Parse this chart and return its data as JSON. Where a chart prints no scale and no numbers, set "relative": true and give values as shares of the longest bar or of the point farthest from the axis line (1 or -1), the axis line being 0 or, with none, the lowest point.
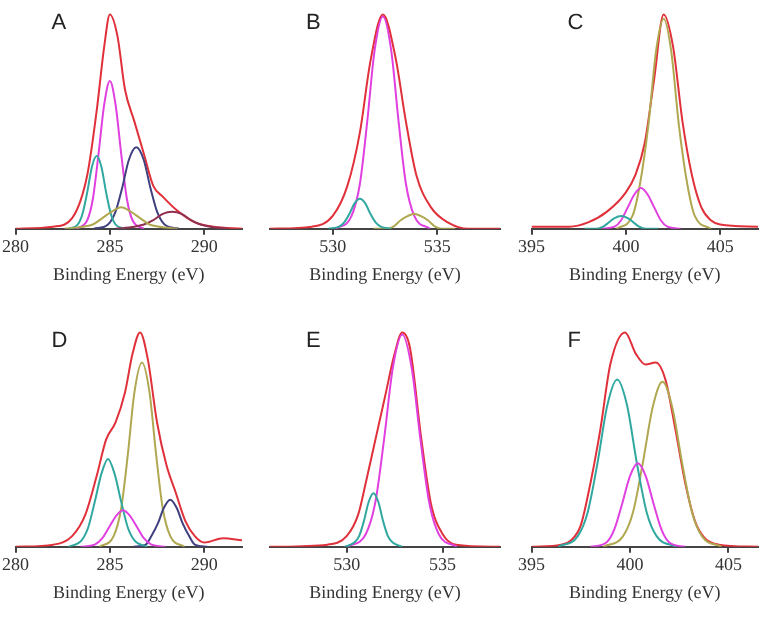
{
  "chart_data": [
    {
      "type": "line",
      "title": "A",
      "xlabel": "Binding Energy (eV)",
      "relative": true,
      "xlim": [
        280,
        292
      ],
      "xticks": [
        280,
        285,
        290
      ],
      "tick_labels": "x",
      "grid": false,
      "legend": false,
      "marker": "none",
      "line_style": "solid",
      "series": [
        {
          "color": "#b0a850",
          "x": [
            282.6,
            283.6,
            284.1,
            284.6,
            285.1,
            285.6,
            286.1,
            286.6,
            287.1,
            287.6,
            288.6
          ],
          "values": [
            0,
            0.01,
            0.02,
            0.05,
            0.08,
            0.1,
            0.08,
            0.05,
            0.02,
            0.01,
            0
          ]
        },
        {
          "color": "#903050",
          "x": [
            285.3,
            286.3,
            286.8,
            287.3,
            287.8,
            288.3,
            288.8,
            289.3,
            289.8,
            290.3,
            291.3
          ],
          "values": [
            0,
            0.01,
            0.02,
            0.04,
            0.07,
            0.08,
            0.07,
            0.04,
            0.02,
            0.01,
            0
          ]
        },
        {
          "color": "#30a8a0",
          "x": [
            282.8,
            283.3,
            283.55,
            283.8,
            284.05,
            284.3,
            284.55,
            284.8,
            285.05,
            285.3,
            285.8
          ],
          "values": [
            0,
            0.02,
            0.07,
            0.17,
            0.29,
            0.34,
            0.29,
            0.17,
            0.07,
            0.02,
            0
          ]
        },
        {
          "color": "#404080",
          "x": [
            284.15,
            284.9,
            285.3,
            285.65,
            286.0,
            286.4,
            286.8,
            287.15,
            287.5,
            287.9,
            288.65
          ],
          "values": [
            0,
            0.02,
            0.08,
            0.19,
            0.32,
            0.38,
            0.32,
            0.19,
            0.08,
            0.02,
            0
          ]
        },
        {
          "color": "#e040e0",
          "x": [
            283.2,
            283.8,
            284.1,
            284.4,
            284.7,
            285,
            285.3,
            285.6,
            285.9,
            286.2,
            286.8
          ],
          "values": [
            0,
            0.04,
            0.14,
            0.35,
            0.58,
            0.69,
            0.58,
            0.35,
            0.14,
            0.04,
            0
          ]
        },
        {
          "color": "#e0303a",
          "x": [
            280,
            282,
            283,
            283.8,
            284.3,
            284.7,
            285,
            285.4,
            285.8,
            286.3,
            286.8,
            287.3,
            287.8,
            288.5,
            289.5,
            290.5,
            292
          ],
          "values": [
            0,
            0.01,
            0.05,
            0.25,
            0.55,
            0.85,
            1,
            0.9,
            0.65,
            0.5,
            0.35,
            0.2,
            0.15,
            0.09,
            0.03,
            0.01,
            0
          ]
        }
      ]
    },
    {
      "type": "line",
      "title": "B",
      "xlabel": "Binding Energy (eV)",
      "relative": true,
      "xlim": [
        527,
        538
      ],
      "xticks": [
        530,
        535
      ],
      "tick_labels": "x",
      "grid": false,
      "legend": false,
      "marker": "none",
      "line_style": "solid",
      "series": [
        {
          "color": "#30a8a0",
          "x": [
            529.8,
            530.3,
            530.55,
            530.8,
            531.05,
            531.3,
            531.55,
            531.8,
            532.05,
            532.3,
            532.8
          ],
          "values": [
            0,
            0.01,
            0.03,
            0.07,
            0.12,
            0.14,
            0.12,
            0.07,
            0.03,
            0.01,
            0
          ]
        },
        {
          "color": "#b0a850",
          "x": [
            531.95,
            532.6,
            532.9,
            533.25,
            533.6,
            533.9,
            534.2,
            534.55,
            534.9,
            535.2,
            535.85
          ],
          "values": [
            0,
            0,
            0.01,
            0.04,
            0.06,
            0.07,
            0.06,
            0.04,
            0.01,
            0,
            0
          ]
        },
        {
          "color": "#e040e0",
          "x": [
            530.15,
            530.9,
            531.3,
            531.65,
            532.0,
            532.4,
            532.8,
            533.15,
            533.5,
            533.9,
            534.65
          ],
          "values": [
            0,
            0.06,
            0.21,
            0.5,
            0.83,
            0.99,
            0.83,
            0.5,
            0.21,
            0.06,
            0
          ]
        },
        {
          "color": "#e0303a",
          "x": [
            527,
            529,
            530,
            530.7,
            531.3,
            531.8,
            532.4,
            533,
            533.5,
            534,
            534.7,
            535.5,
            536.5,
            538
          ],
          "values": [
            0,
            0.01,
            0.06,
            0.2,
            0.45,
            0.78,
            1,
            0.8,
            0.5,
            0.25,
            0.1,
            0.03,
            0,
            0
          ]
        }
      ]
    },
    {
      "type": "line",
      "title": "C",
      "xlabel": "Binding Energy (eV)",
      "relative": true,
      "xlim": [
        395,
        407
      ],
      "xticks": [
        395,
        400,
        405
      ],
      "tick_labels": "x",
      "grid": false,
      "legend": false,
      "marker": "none",
      "line_style": "solid",
      "series": [
        {
          "color": "#30a8a0",
          "x": [
            397.8,
            398.45,
            398.8,
            399.1,
            399.4,
            399.75,
            400.1,
            400.4,
            400.7,
            401.05,
            401.7
          ],
          "values": [
            0,
            0,
            0.01,
            0.03,
            0.05,
            0.06,
            0.05,
            0.03,
            0.01,
            0,
            0
          ]
        },
        {
          "color": "#e040e0",
          "x": [
            398.7,
            399.4,
            399.75,
            400.1,
            400.45,
            400.8,
            401.15,
            401.5,
            401.85,
            402.2,
            402.9
          ],
          "values": [
            0,
            0.01,
            0.04,
            0.1,
            0.16,
            0.19,
            0.16,
            0.1,
            0.04,
            0.01,
            0
          ]
        },
        {
          "color": "#b0a850",
          "x": [
            399.5,
            400.35,
            400.75,
            401.2,
            401.6,
            402,
            402.4,
            402.8,
            403.25,
            403.65,
            404.5
          ],
          "values": [
            0,
            0.06,
            0.21,
            0.49,
            0.83,
            0.98,
            0.83,
            0.49,
            0.21,
            0.06,
            0
          ]
        },
        {
          "color": "#e0303a",
          "x": [
            395,
            397,
            398,
            399,
            400,
            400.5,
            401,
            401.5,
            402,
            402.5,
            403,
            403.5,
            404,
            404.5,
            405,
            407
          ],
          "values": [
            0.01,
            0.01,
            0.03,
            0.08,
            0.17,
            0.25,
            0.4,
            0.7,
            1,
            0.85,
            0.5,
            0.25,
            0.1,
            0.04,
            0.02,
            0.01
          ]
        }
      ]
    },
    {
      "type": "line",
      "title": "D",
      "xlabel": "Binding Energy (eV)",
      "relative": true,
      "xlim": [
        280,
        292
      ],
      "xticks": [
        280,
        285,
        290
      ],
      "tick_labels": "x",
      "grid": false,
      "legend": false,
      "marker": "none",
      "line_style": "solid",
      "series": [
        {
          "color": "#e040e0",
          "x": [
            283.45,
            284.2,
            284.6,
            284.95,
            285.3,
            285.7,
            286.1,
            286.45,
            286.8,
            287.2,
            287.95
          ],
          "values": [
            0,
            0.01,
            0.04,
            0.09,
            0.14,
            0.17,
            0.14,
            0.09,
            0.04,
            0.01,
            0
          ]
        },
        {
          "color": "#30a8a0",
          "x": [
            282.8,
            283.5,
            283.85,
            284.2,
            284.55,
            284.9,
            285.25,
            285.6,
            285.95,
            286.3,
            287
          ],
          "values": [
            0,
            0.03,
            0.09,
            0.21,
            0.34,
            0.41,
            0.34,
            0.21,
            0.09,
            0.03,
            0
          ]
        },
        {
          "color": "#404080",
          "x": [
            286.25,
            286.9,
            287.2,
            287.55,
            287.85,
            288.2,
            288.55,
            288.85,
            289.2,
            289.5,
            290.15
          ],
          "values": [
            0,
            0.01,
            0.05,
            0.11,
            0.18,
            0.22,
            0.18,
            0.11,
            0.05,
            0.01,
            0
          ]
        },
        {
          "color": "#b0a850",
          "x": [
            284.45,
            285.2,
            285.6,
            285.95,
            286.3,
            286.7,
            287.1,
            287.45,
            287.8,
            288.2,
            288.95
          ],
          "values": [
            0,
            0.05,
            0.18,
            0.43,
            0.72,
            0.86,
            0.72,
            0.43,
            0.18,
            0.05,
            0
          ]
        },
        {
          "color": "#e0303a",
          "x": [
            280,
            282,
            283,
            283.7,
            284.3,
            284.8,
            285.3,
            285.8,
            286.2,
            286.6,
            287,
            287.5,
            288,
            288.5,
            289,
            289.5,
            290,
            291,
            292
          ],
          "values": [
            0,
            0.01,
            0.05,
            0.15,
            0.33,
            0.5,
            0.58,
            0.72,
            0.9,
            1,
            0.88,
            0.58,
            0.38,
            0.25,
            0.12,
            0.05,
            0.02,
            0.04,
            0.03
          ]
        }
      ]
    },
    {
      "type": "line",
      "title": "E",
      "xlabel": "Binding Energy (eV)",
      "relative": true,
      "xlim": [
        526,
        538
      ],
      "xticks": [
        530,
        535
      ],
      "tick_labels": "x",
      "grid": false,
      "legend": false,
      "marker": "none",
      "line_style": "solid",
      "series": [
        {
          "color": "#30a8a0",
          "x": [
            529.9,
            530.4,
            530.65,
            530.9,
            531.15,
            531.4,
            531.65,
            531.9,
            532.15,
            532.4,
            532.9
          ],
          "values": [
            0,
            0.02,
            0.05,
            0.12,
            0.21,
            0.25,
            0.21,
            0.12,
            0.05,
            0.02,
            0
          ]
        },
        {
          "color": "#e040e0",
          "x": [
            530.05,
            531,
            531.5,
            531.95,
            532.4,
            532.9,
            533.4,
            533.85,
            534.3,
            534.8,
            535.75
          ],
          "values": [
            0,
            0.06,
            0.21,
            0.5,
            0.83,
            0.99,
            0.83,
            0.5,
            0.21,
            0.06,
            0
          ]
        },
        {
          "color": "#e0303a",
          "x": [
            526,
            529,
            530,
            530.6,
            531,
            531.5,
            532,
            532.5,
            532.9,
            533.3,
            533.9,
            534.4,
            535,
            535.7,
            538
          ],
          "values": [
            0,
            0.01,
            0.05,
            0.15,
            0.3,
            0.5,
            0.7,
            0.9,
            1,
            0.93,
            0.5,
            0.2,
            0.06,
            0.01,
            0
          ]
        }
      ]
    },
    {
      "type": "line",
      "title": "F",
      "xlabel": "Binding Energy (eV)",
      "relative": true,
      "xlim": [
        395,
        406.5
      ],
      "xticks": [
        395,
        400,
        405
      ],
      "tick_labels": "x",
      "grid": false,
      "legend": false,
      "marker": "none",
      "line_style": "solid",
      "series": [
        {
          "color": "#e040e0",
          "x": [
            398,
            398.8,
            399.2,
            399.6,
            400,
            400.4,
            400.8,
            401.2,
            401.6,
            402,
            402.8
          ],
          "values": [
            0,
            0.02,
            0.08,
            0.2,
            0.33,
            0.39,
            0.33,
            0.2,
            0.08,
            0.02,
            0
          ]
        },
        {
          "color": "#30a8a0",
          "x": [
            396.35,
            397.35,
            397.85,
            398.35,
            398.85,
            399.35,
            399.85,
            400.35,
            400.85,
            401.35,
            402.35
          ],
          "values": [
            0,
            0.05,
            0.16,
            0.39,
            0.66,
            0.78,
            0.66,
            0.39,
            0.16,
            0.05,
            0
          ]
        },
        {
          "color": "#b0a850",
          "x": [
            398.65,
            399.65,
            400.15,
            400.65,
            401.15,
            401.65,
            402.15,
            402.65,
            403.15,
            403.65,
            404.65
          ],
          "values": [
            0,
            0.05,
            0.16,
            0.39,
            0.65,
            0.77,
            0.65,
            0.39,
            0.16,
            0.05,
            0
          ]
        },
        {
          "color": "#e0303a",
          "x": [
            395,
            396.5,
            397,
            397.5,
            398,
            398.5,
            399,
            399.75,
            400.3,
            400.8,
            401.3,
            401.8,
            402.3,
            402.8,
            403.3,
            403.8,
            404.5,
            406.5
          ],
          "values": [
            0,
            0.01,
            0.03,
            0.1,
            0.3,
            0.55,
            0.85,
            1,
            0.9,
            0.85,
            0.86,
            0.78,
            0.55,
            0.3,
            0.12,
            0.04,
            0.01,
            0
          ]
        }
      ]
    }
  ]
}
